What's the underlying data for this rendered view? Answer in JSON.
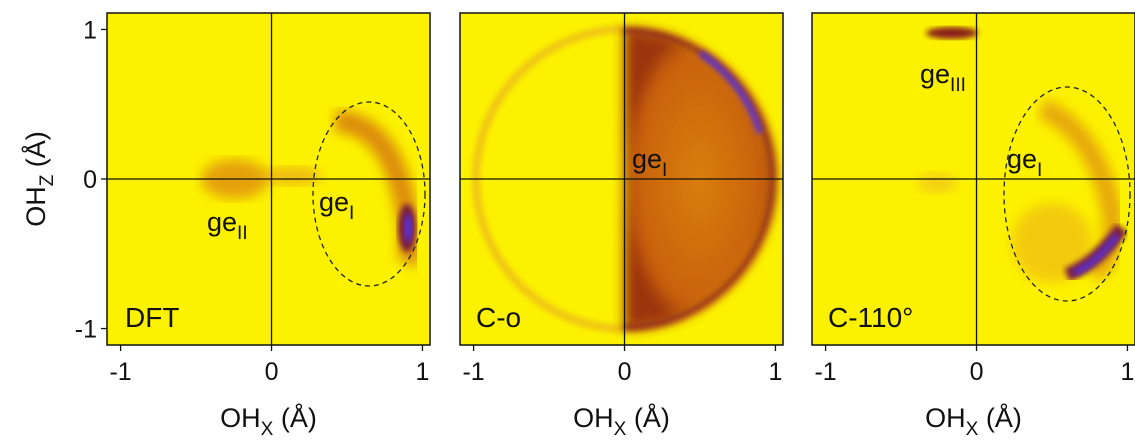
{
  "chart_data": [
    {
      "type": "density",
      "label": "DFT",
      "xlim": [
        -1.09,
        1.05
      ],
      "ylim": [
        -1.11,
        1.11
      ],
      "xticks": [
        -1,
        0,
        1
      ],
      "yticks": [
        -1,
        0,
        1
      ],
      "xlabel": {
        "base": "OH",
        "sub": "X",
        "unit": " (Å)"
      },
      "ylabel": {
        "base": "OH",
        "sub": "Z",
        "unit": " (Å)"
      },
      "annotations": [
        {
          "text": "ge",
          "sub": "II"
        },
        {
          "text": "ge",
          "sub": "I"
        }
      ]
    },
    {
      "type": "density",
      "label": "C-o",
      "xlim": [
        -1.09,
        1.05
      ],
      "ylim": [
        -1.11,
        1.11
      ],
      "xticks": [
        -1,
        0,
        1
      ],
      "xlabel": {
        "base": "OH",
        "sub": "X",
        "unit": " (Å)"
      },
      "annotations": [
        {
          "text": "ge",
          "sub": "I"
        }
      ]
    },
    {
      "type": "density",
      "label": "C-110°",
      "xlim": [
        -1.09,
        1.05
      ],
      "ylim": [
        -1.11,
        1.11
      ],
      "xticks": [
        -1,
        0,
        1
      ],
      "xlabel": {
        "base": "OH",
        "sub": "X",
        "unit": " (Å)"
      },
      "annotations": [
        {
          "text": "ge",
          "sub": "III"
        },
        {
          "text": "ge",
          "sub": "I"
        }
      ]
    }
  ]
}
